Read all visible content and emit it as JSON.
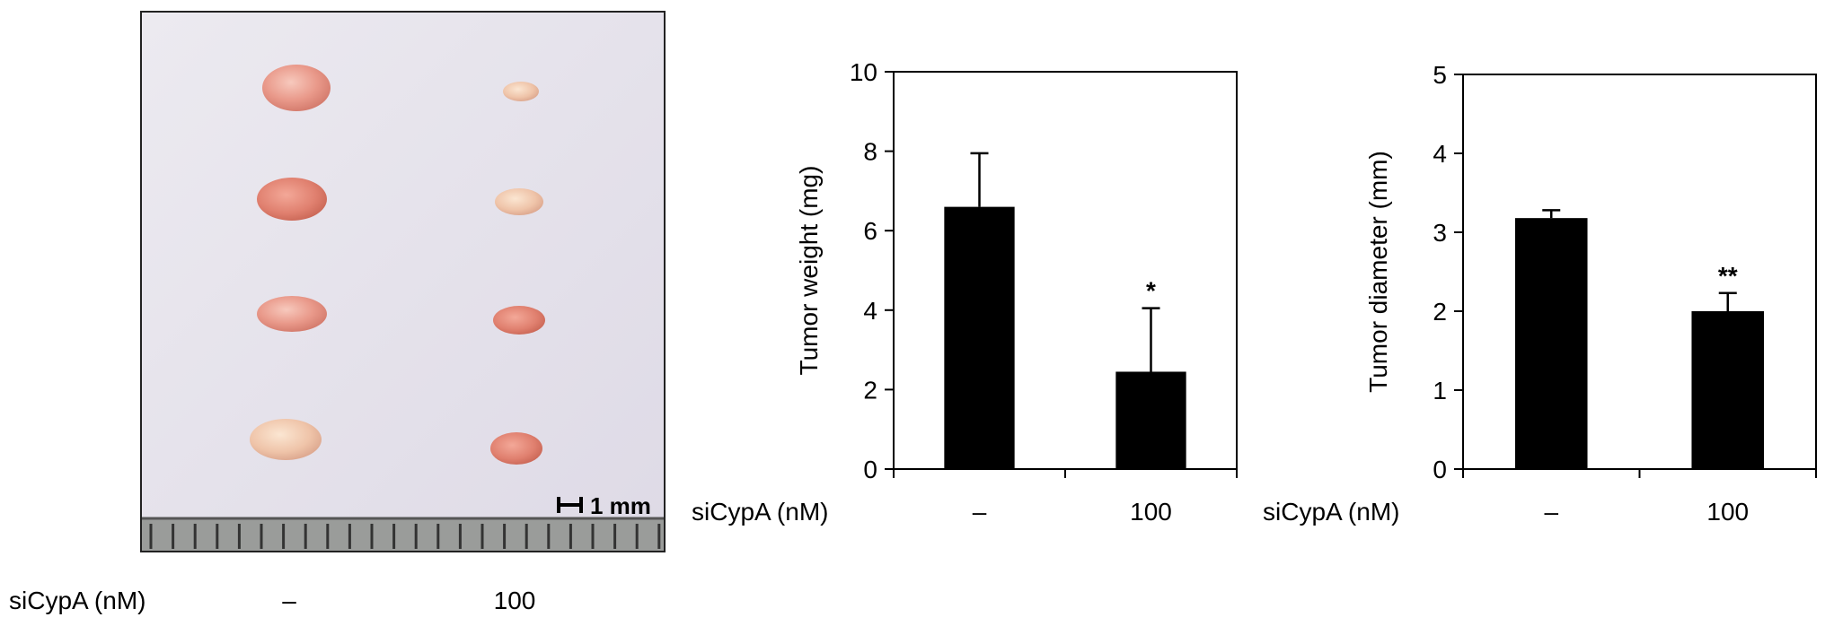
{
  "photo_panel": {
    "scale_bar_label": "1 mm",
    "treatment_label": "siCypA (nM)",
    "groups": [
      "–",
      "100"
    ],
    "colors": {
      "background": "#e4e0ea",
      "ruler": "#9a9c9a",
      "tumor_control": "#e79a8d",
      "tumor_treated": "#e9b59f"
    }
  },
  "chart_data": [
    {
      "type": "bar",
      "title": "",
      "ylabel": "Tumor weight (mg)",
      "xlabel": "siCypA (nM)",
      "categories": [
        "–",
        "100"
      ],
      "values": [
        6.6,
        2.45
      ],
      "error": [
        1.35,
        1.6
      ],
      "significance": [
        "",
        "*"
      ],
      "ylim": [
        0,
        10
      ],
      "yticks": [
        0,
        2,
        4,
        6,
        8,
        10
      ],
      "bar_color": "#000000",
      "grid": false
    },
    {
      "type": "bar",
      "title": "",
      "ylabel": "Tumor diameter (mm)",
      "xlabel": "siCypA (nM)",
      "categories": [
        "–",
        "100"
      ],
      "values": [
        3.18,
        2.0
      ],
      "error": [
        0.1,
        0.23
      ],
      "significance": [
        "",
        "**"
      ],
      "ylim": [
        0,
        5
      ],
      "yticks": [
        0,
        1,
        2,
        3,
        4,
        5
      ],
      "bar_color": "#000000",
      "grid": false
    }
  ]
}
